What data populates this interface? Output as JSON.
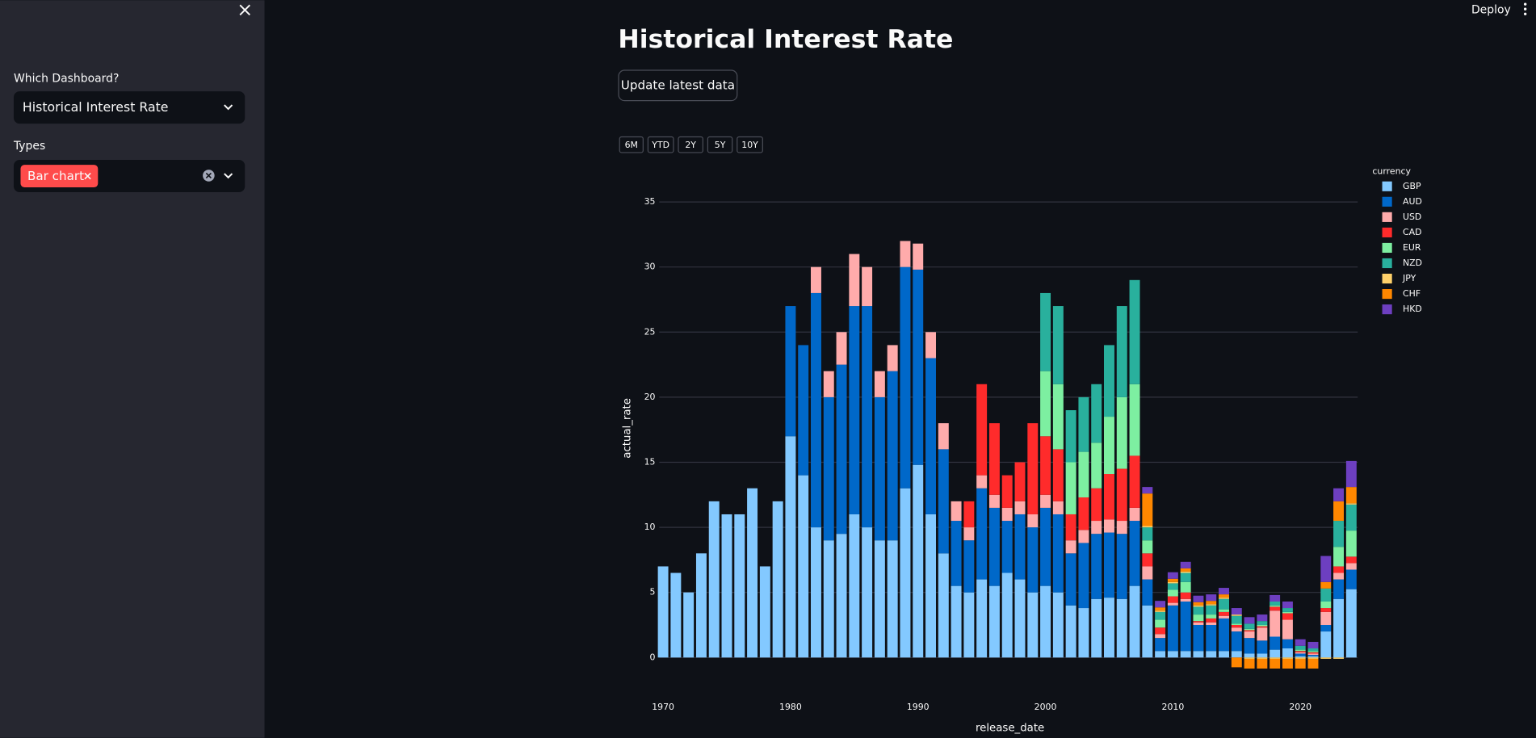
{
  "sidebar": {
    "dashboard_label": "Which Dashboard?",
    "dashboard_value": "Historical Interest Rate",
    "types_label": "Types",
    "types_tags": [
      "Bar chart"
    ]
  },
  "header": {
    "deploy": "Deploy"
  },
  "main": {
    "title": "Historical Interest Rate",
    "button": "Update latest data",
    "range_buttons": [
      "6M",
      "YTD",
      "2Y",
      "5Y",
      "10Y"
    ]
  },
  "chart_data": {
    "type": "bar",
    "stacked": true,
    "xlabel": "release_date",
    "ylabel": "actual_rate",
    "legend_title": "currency",
    "x": [
      1970,
      1971,
      1972,
      1973,
      1974,
      1975,
      1976,
      1977,
      1978,
      1979,
      1980,
      1981,
      1982,
      1983,
      1984,
      1985,
      1986,
      1987,
      1988,
      1989,
      1990,
      1991,
      1992,
      1993,
      1994,
      1995,
      1996,
      1997,
      1998,
      1999,
      2000,
      2001,
      2002,
      2003,
      2004,
      2005,
      2006,
      2007,
      2008,
      2009,
      2010,
      2011,
      2012,
      2013,
      2014,
      2015,
      2016,
      2017,
      2018,
      2019,
      2020,
      2021,
      2022,
      2023,
      2024
    ],
    "series": [
      {
        "name": "GBP",
        "color": "#83c9ff",
        "values": [
          7,
          6.5,
          5,
          8,
          12,
          11,
          11,
          13,
          7,
          12,
          17,
          14,
          10,
          9,
          9.5,
          11,
          10,
          9,
          9,
          13,
          14.8,
          11,
          8,
          5.5,
          5,
          6,
          5.5,
          6.5,
          6,
          5,
          5.5,
          5,
          4,
          3.8,
          4.5,
          4.6,
          4.5,
          5.5,
          4,
          0.5,
          0.5,
          0.5,
          0.5,
          0.5,
          0.5,
          0.5,
          0.3,
          0.3,
          0.6,
          0.7,
          0.1,
          0.1,
          2,
          4.5,
          5.25
        ]
      },
      {
        "name": "AUD",
        "color": "#0068c9",
        "values": [
          null,
          null,
          null,
          null,
          null,
          null,
          null,
          null,
          null,
          null,
          10,
          10,
          18,
          11,
          13,
          16,
          17,
          11,
          13,
          17,
          15,
          12,
          8,
          5,
          4,
          7,
          6,
          4,
          5,
          5,
          6,
          6,
          4,
          5,
          5,
          5,
          5,
          5,
          2,
          1,
          3.5,
          3.8,
          2,
          2,
          2.5,
          1.5,
          1.2,
          1,
          1,
          0.7,
          0.2,
          0.1,
          0.5,
          1.5,
          1.5
        ]
      },
      {
        "name": "USD",
        "color": "#ffabab",
        "values": [
          null,
          null,
          null,
          null,
          null,
          null,
          null,
          null,
          null,
          null,
          null,
          null,
          2,
          2,
          2.5,
          4,
          3,
          2,
          2,
          2,
          2,
          2,
          2,
          1.5,
          1,
          1,
          1,
          1,
          1,
          1,
          1,
          1,
          1,
          1,
          1,
          1,
          1,
          1,
          1,
          0.3,
          0.2,
          0.2,
          0.2,
          0.2,
          0.2,
          0.3,
          0.5,
          1,
          2,
          1.5,
          0.1,
          0.1,
          1,
          0.5,
          0.5
        ]
      },
      {
        "name": "CAD",
        "color": "#ff2b2b",
        "values": [
          null,
          null,
          null,
          null,
          null,
          null,
          null,
          null,
          null,
          null,
          null,
          null,
          null,
          null,
          null,
          null,
          null,
          null,
          null,
          null,
          null,
          null,
          null,
          null,
          2,
          7,
          5.5,
          2.5,
          3,
          7,
          4.5,
          4,
          2,
          2.5,
          2.5,
          3.5,
          4,
          4,
          1,
          0.5,
          0.5,
          0.5,
          0.1,
          0.3,
          0.3,
          0.2,
          0.1,
          0.1,
          0.3,
          0.5,
          0.1,
          0.1,
          0.3,
          0.5,
          0.5
        ]
      },
      {
        "name": "EUR",
        "color": "#7defa1",
        "values": [
          null,
          null,
          null,
          null,
          null,
          null,
          null,
          null,
          null,
          null,
          null,
          null,
          null,
          null,
          null,
          null,
          null,
          null,
          null,
          null,
          null,
          null,
          null,
          null,
          null,
          null,
          null,
          null,
          null,
          null,
          5,
          5,
          4,
          3.5,
          3.5,
          4.4,
          5.5,
          5.5,
          1,
          0.6,
          0.5,
          0.8,
          0.5,
          0.3,
          0.2,
          0.1,
          0.1,
          0.1,
          0.1,
          0.1,
          0.1,
          0.1,
          0.5,
          1.5,
          2
        ]
      },
      {
        "name": "NZD",
        "color": "#29b09d",
        "values": [
          null,
          null,
          null,
          null,
          null,
          null,
          null,
          null,
          null,
          null,
          null,
          null,
          null,
          null,
          null,
          null,
          null,
          null,
          null,
          null,
          null,
          null,
          null,
          null,
          null,
          null,
          null,
          null,
          null,
          null,
          6,
          6,
          4,
          4.2,
          4.5,
          5.5,
          7,
          8,
          1,
          0.6,
          0.5,
          0.7,
          0.6,
          0.7,
          0.8,
          0.6,
          0.4,
          0.3,
          0.3,
          0.3,
          0.3,
          0.2,
          1,
          2,
          2
        ]
      },
      {
        "name": "JPY",
        "color": "#ffd16a",
        "values": [
          null,
          null,
          null,
          null,
          null,
          null,
          null,
          null,
          null,
          null,
          null,
          null,
          null,
          null,
          null,
          null,
          null,
          null,
          null,
          null,
          null,
          null,
          null,
          null,
          null,
          null,
          null,
          null,
          null,
          null,
          null,
          null,
          null,
          null,
          null,
          null,
          null,
          null,
          0.1,
          0.1,
          0.1,
          0.1,
          0.1,
          0.1,
          0.1,
          0.1,
          -0.1,
          -0.1,
          -0.1,
          -0.1,
          -0.1,
          -0.1,
          -0.1,
          -0.1,
          0.1
        ]
      },
      {
        "name": "CHF",
        "color": "#ff8700",
        "values": [
          null,
          null,
          null,
          null,
          null,
          null,
          null,
          null,
          null,
          null,
          null,
          null,
          null,
          null,
          null,
          null,
          null,
          null,
          null,
          null,
          null,
          null,
          null,
          null,
          null,
          null,
          null,
          null,
          null,
          null,
          null,
          null,
          null,
          null,
          null,
          null,
          null,
          null,
          2.5,
          0.25,
          0.25,
          0.25,
          0.25,
          0.25,
          0.25,
          -0.75,
          -0.75,
          -0.75,
          -0.75,
          -0.75,
          -0.75,
          -0.75,
          0.5,
          1.5,
          1.25
        ]
      },
      {
        "name": "HKD",
        "color": "#6d3fc0",
        "values": [
          null,
          null,
          null,
          null,
          null,
          null,
          null,
          null,
          null,
          null,
          null,
          null,
          null,
          null,
          null,
          null,
          null,
          null,
          null,
          null,
          null,
          null,
          null,
          null,
          null,
          null,
          null,
          null,
          null,
          null,
          null,
          null,
          null,
          null,
          null,
          null,
          null,
          null,
          0.5,
          0.5,
          0.5,
          0.5,
          0.5,
          0.5,
          0.5,
          0.5,
          0.5,
          0.5,
          0.5,
          0.5,
          0.5,
          0.5,
          2,
          1,
          2
        ]
      }
    ],
    "xlim": [
      1969.7,
      2024.5
    ],
    "ylim": [
      -1.2,
      37.5
    ],
    "xticks": [
      1970,
      1980,
      1990,
      2000,
      2010,
      2020
    ],
    "yticks": [
      0,
      5,
      10,
      15,
      20,
      25,
      30,
      35
    ],
    "grid": true
  }
}
